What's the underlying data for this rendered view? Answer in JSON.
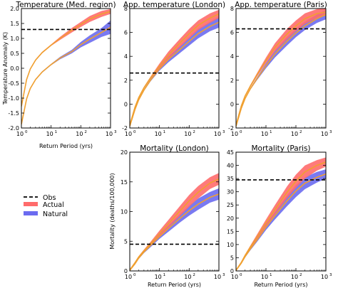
{
  "legend": {
    "placement": "lower-left",
    "entries": [
      {
        "label": "Obs",
        "style": "dashed",
        "color": "#000000"
      },
      {
        "label": "Actual",
        "style": "band",
        "color": "#ff6b6b"
      },
      {
        "label": "Natural",
        "style": "band",
        "color": "#6b6bf0"
      }
    ]
  },
  "colors": {
    "actual_band": "#ff6b6b",
    "natural_band": "#6b6bf0",
    "median_line": "#f0a030",
    "obs_line": "#000000"
  },
  "chart_data": [
    {
      "type": "area",
      "title": "Temperature (Med. region)",
      "xlabel": "Return Period (yrs)",
      "ylabel": "Temperature Anomaly (K)",
      "xscale": "log",
      "xlim": [
        1,
        1000
      ],
      "ylim": [
        -2.0,
        2.0
      ],
      "yticks": [
        "-2.0",
        "-1.5",
        "-1.0",
        "-0.5",
        "0.0",
        "0.5",
        "1.0",
        "1.5",
        "2.0"
      ],
      "xticks": [
        {
          "base": "10",
          "exp": "0"
        },
        {
          "base": "10",
          "exp": "1"
        },
        {
          "base": "10",
          "exp": "2"
        },
        {
          "base": "10",
          "exp": "3"
        }
      ],
      "obs": 1.3,
      "series": [
        {
          "name": "Actual",
          "x": [
            1,
            1.5,
            2,
            3,
            5,
            10,
            20,
            50,
            100,
            200,
            500,
            1000
          ],
          "lower": [
            -1.3,
            -0.4,
            -0.05,
            0.25,
            0.5,
            0.75,
            0.95,
            1.2,
            1.38,
            1.55,
            1.72,
            1.82
          ],
          "upper": [
            -1.25,
            -0.35,
            0.0,
            0.3,
            0.55,
            0.8,
            1.05,
            1.35,
            1.55,
            1.75,
            1.92,
            1.98
          ]
        },
        {
          "name": "Natural",
          "x": [
            1,
            1.5,
            2,
            3,
            5,
            10,
            20,
            50,
            100,
            200,
            500,
            1000
          ],
          "lower": [
            -1.9,
            -1.05,
            -0.7,
            -0.4,
            -0.15,
            0.1,
            0.3,
            0.5,
            0.7,
            0.85,
            1.05,
            1.15
          ],
          "upper": [
            -1.85,
            -1.0,
            -0.65,
            -0.35,
            -0.1,
            0.15,
            0.38,
            0.62,
            0.88,
            1.1,
            1.35,
            1.6
          ]
        }
      ]
    },
    {
      "type": "area",
      "title": "App. temperature (London)",
      "xlabel": "",
      "ylabel": "",
      "xscale": "log",
      "xlim": [
        1,
        1000
      ],
      "ylim": [
        -2,
        8
      ],
      "yticks": [
        "-2",
        "0",
        "2",
        "4",
        "6",
        "8"
      ],
      "xticks": [
        {
          "base": "10",
          "exp": "0"
        },
        {
          "base": "10",
          "exp": "1"
        },
        {
          "base": "10",
          "exp": "2"
        },
        {
          "base": "10",
          "exp": "3"
        }
      ],
      "obs": 2.6,
      "series": [
        {
          "name": "Actual",
          "x": [
            1,
            1.5,
            2,
            3,
            5,
            10,
            20,
            50,
            100,
            200,
            500,
            1000
          ],
          "lower": [
            -1.8,
            -0.3,
            0.5,
            1.3,
            2.1,
            3.0,
            3.8,
            4.8,
            5.5,
            6.2,
            6.8,
            7.2
          ],
          "upper": [
            -1.7,
            -0.2,
            0.6,
            1.45,
            2.3,
            3.4,
            4.4,
            5.5,
            6.3,
            7.0,
            7.6,
            7.9
          ]
        },
        {
          "name": "Natural",
          "x": [
            1,
            1.5,
            2,
            3,
            5,
            10,
            20,
            50,
            100,
            200,
            500,
            1000
          ],
          "lower": [
            -1.9,
            -0.5,
            0.3,
            1.1,
            1.9,
            2.8,
            3.5,
            4.3,
            4.9,
            5.5,
            6.1,
            6.4
          ],
          "upper": [
            -1.8,
            -0.4,
            0.4,
            1.25,
            2.1,
            3.1,
            4.0,
            4.9,
            5.6,
            6.3,
            6.9,
            7.3
          ]
        }
      ]
    },
    {
      "type": "area",
      "title": "App. temperature (Paris)",
      "xlabel": "",
      "ylabel": "",
      "xscale": "log",
      "xlim": [
        1,
        1000
      ],
      "ylim": [
        -2,
        8
      ],
      "yticks": [
        "-2",
        "0",
        "2",
        "4",
        "6",
        "8"
      ],
      "xticks": [
        {
          "base": "10",
          "exp": "0"
        },
        {
          "base": "10",
          "exp": "1"
        },
        {
          "base": "10",
          "exp": "2"
        },
        {
          "base": "10",
          "exp": "3"
        }
      ],
      "obs": 6.3,
      "series": [
        {
          "name": "Actual",
          "x": [
            1,
            1.5,
            2,
            3,
            5,
            10,
            20,
            50,
            100,
            200,
            500,
            1000
          ],
          "lower": [
            -1.8,
            -0.2,
            0.6,
            1.4,
            2.3,
            3.4,
            4.4,
            5.4,
            6.1,
            6.7,
            7.2,
            7.4
          ],
          "upper": [
            -1.7,
            -0.1,
            0.75,
            1.6,
            2.6,
            3.9,
            5.1,
            6.3,
            7.0,
            7.6,
            7.95,
            8.0
          ]
        },
        {
          "name": "Natural",
          "x": [
            1,
            1.5,
            2,
            3,
            5,
            10,
            20,
            50,
            100,
            200,
            500,
            1000
          ],
          "lower": [
            -1.9,
            -0.4,
            0.4,
            1.2,
            2.0,
            3.0,
            3.9,
            4.9,
            5.6,
            6.2,
            6.8,
            7.1
          ],
          "upper": [
            -1.8,
            -0.3,
            0.5,
            1.35,
            2.25,
            3.4,
            4.5,
            5.6,
            6.3,
            6.9,
            7.5,
            7.9
          ]
        }
      ]
    },
    {
      "type": "area",
      "title": "Mortality (London)",
      "xlabel": "Return Period (yrs)",
      "ylabel": "Mortality (deaths/100,000)",
      "xscale": "log",
      "xlim": [
        1,
        1000
      ],
      "ylim": [
        0,
        20
      ],
      "yticks": [
        "0",
        "5",
        "10",
        "15",
        "20"
      ],
      "xticks": [
        {
          "base": "10",
          "exp": "0"
        },
        {
          "base": "10",
          "exp": "1"
        },
        {
          "base": "10",
          "exp": "2"
        },
        {
          "base": "10",
          "exp": "3"
        }
      ],
      "obs": 4.5,
      "series": [
        {
          "name": "Actual",
          "x": [
            1,
            1.5,
            2,
            3,
            5,
            10,
            20,
            50,
            100,
            200,
            500,
            1000
          ],
          "lower": [
            0.1,
            1.3,
            2.2,
            3.2,
            4.3,
            5.8,
            7.3,
            9.3,
            10.8,
            12.2,
            13.8,
            14.5
          ],
          "upper": [
            0.2,
            1.5,
            2.5,
            3.6,
            4.9,
            6.8,
            8.6,
            11.0,
            12.8,
            14.3,
            15.8,
            16.5
          ]
        },
        {
          "name": "Natural",
          "x": [
            1,
            1.5,
            2,
            3,
            5,
            10,
            20,
            50,
            100,
            200,
            500,
            1000
          ],
          "lower": [
            0.05,
            1.1,
            2.0,
            3.0,
            4.0,
            5.4,
            6.6,
            8.2,
            9.3,
            10.3,
            11.5,
            12.0
          ],
          "upper": [
            0.15,
            1.3,
            2.3,
            3.4,
            4.6,
            6.2,
            7.7,
            9.6,
            11.0,
            12.2,
            13.3,
            13.9
          ]
        }
      ]
    },
    {
      "type": "area",
      "title": "Mortality (Paris)",
      "xlabel": "Return Period (yrs)",
      "ylabel": "",
      "xscale": "log",
      "xlim": [
        1,
        1000
      ],
      "ylim": [
        0,
        45
      ],
      "yticks": [
        "0",
        "5",
        "10",
        "15",
        "20",
        "25",
        "30",
        "35",
        "40",
        "45"
      ],
      "xticks": [
        {
          "base": "10",
          "exp": "0"
        },
        {
          "base": "10",
          "exp": "1"
        },
        {
          "base": "10",
          "exp": "2"
        },
        {
          "base": "10",
          "exp": "3"
        }
      ],
      "obs": 34.5,
      "series": [
        {
          "name": "Actual",
          "x": [
            1,
            1.5,
            2,
            3,
            5,
            10,
            20,
            50,
            100,
            200,
            500,
            1000
          ],
          "lower": [
            0.2,
            3.0,
            5.5,
            8.5,
            12.0,
            17.0,
            21.5,
            27.5,
            31.5,
            35.0,
            38.0,
            39.5
          ],
          "upper": [
            0.4,
            3.5,
            6.2,
            9.6,
            13.8,
            19.5,
            25.0,
            32.0,
            36.5,
            40.0,
            42.0,
            43.0
          ]
        },
        {
          "name": "Natural",
          "x": [
            1,
            1.5,
            2,
            3,
            5,
            10,
            20,
            50,
            100,
            200,
            500,
            1000
          ],
          "lower": [
            0.1,
            2.7,
            5.0,
            7.8,
            11.0,
            15.5,
            19.5,
            24.5,
            28.0,
            31.0,
            33.5,
            35.0
          ],
          "upper": [
            0.3,
            3.2,
            5.7,
            8.8,
            12.5,
            17.8,
            22.5,
            28.5,
            32.5,
            35.5,
            37.5,
            38.5
          ]
        }
      ]
    }
  ]
}
